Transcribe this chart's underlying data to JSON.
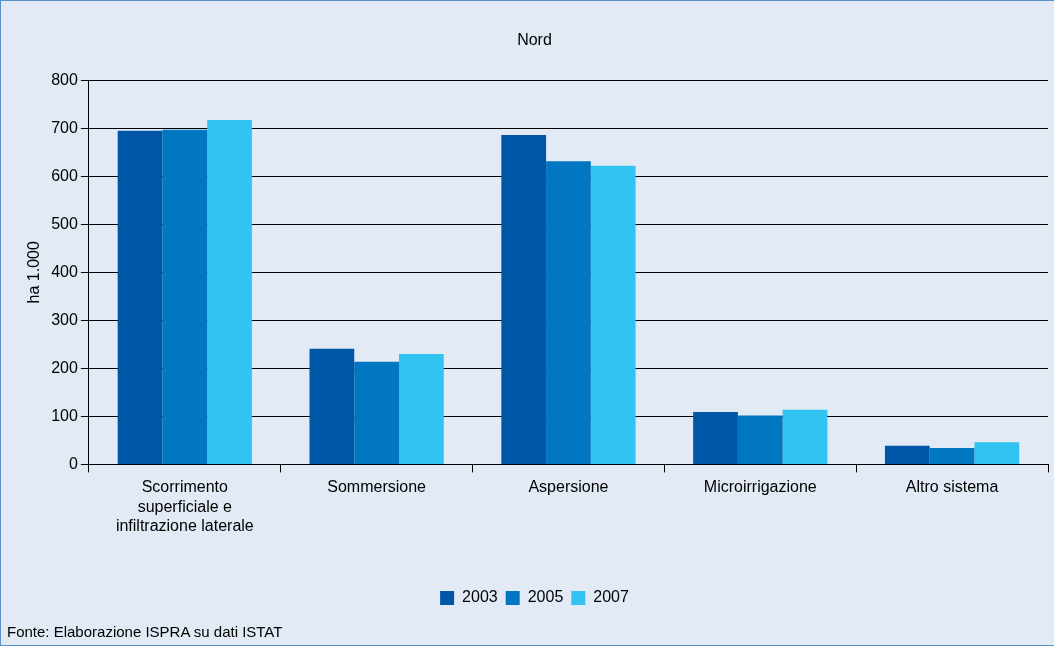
{
  "chart_data": {
    "type": "bar",
    "title": "Nord",
    "ylabel": "ha 1.000",
    "categories": [
      "Scorrimento superficiale e infiltrazione laterale",
      "Sommersione",
      "Aspersione",
      "Microirrigazione",
      "Altro sistema"
    ],
    "series": [
      {
        "name": "2003",
        "color": "#0057a8",
        "values": [
          695,
          241,
          686,
          109,
          39
        ]
      },
      {
        "name": "2005",
        "color": "#0077c0",
        "values": [
          697,
          214,
          631,
          102,
          34
        ]
      },
      {
        "name": "2007",
        "color": "#33c3f0",
        "values": [
          717,
          230,
          622,
          114,
          46
        ]
      }
    ],
    "ylim": [
      0,
      800
    ],
    "yticks": [
      0,
      100,
      200,
      300,
      400,
      500,
      600,
      700,
      800
    ],
    "grid": "y",
    "legend": "bottom",
    "annotations": [
      "Fonte: Elaborazione ISPRA su dati ISTAT"
    ]
  }
}
